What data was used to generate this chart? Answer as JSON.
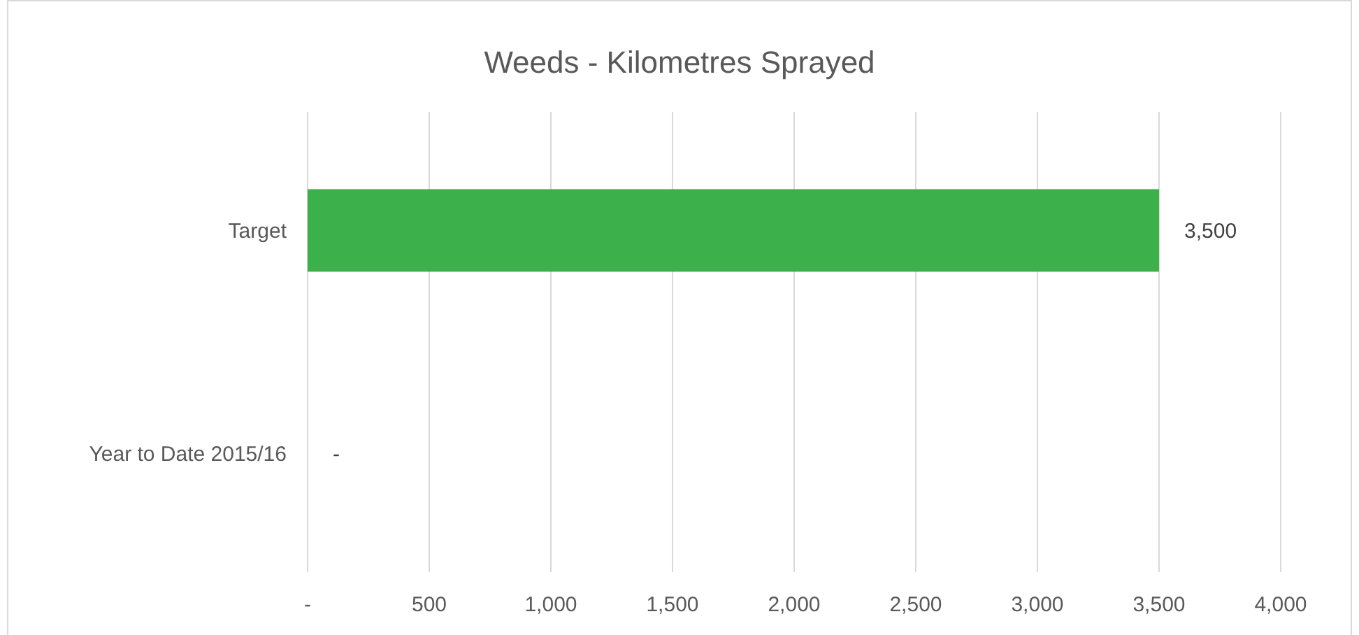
{
  "chart_data": {
    "type": "bar",
    "orientation": "horizontal",
    "title": "Weeds - Kilometres Sprayed",
    "categories": [
      "Target",
      "Year to Date 2015/16"
    ],
    "values": [
      3500,
      0
    ],
    "value_labels": [
      "3,500",
      "-"
    ],
    "color": "#3cb04b",
    "xlim": [
      0,
      4000
    ],
    "xticks": [
      {
        "value": 0,
        "label": "-"
      },
      500,
      {
        "value": 1000,
        "label": "1,000"
      },
      {
        "value": 1500,
        "label": "1,500"
      },
      {
        "value": 2000,
        "label": "2,000"
      },
      {
        "value": 2500,
        "label": "2,500"
      },
      {
        "value": 3000,
        "label": "3,000"
      },
      {
        "value": 3500,
        "label": "3,500"
      },
      {
        "value": 4000,
        "label": "4,000"
      }
    ],
    "grid": "x"
  }
}
